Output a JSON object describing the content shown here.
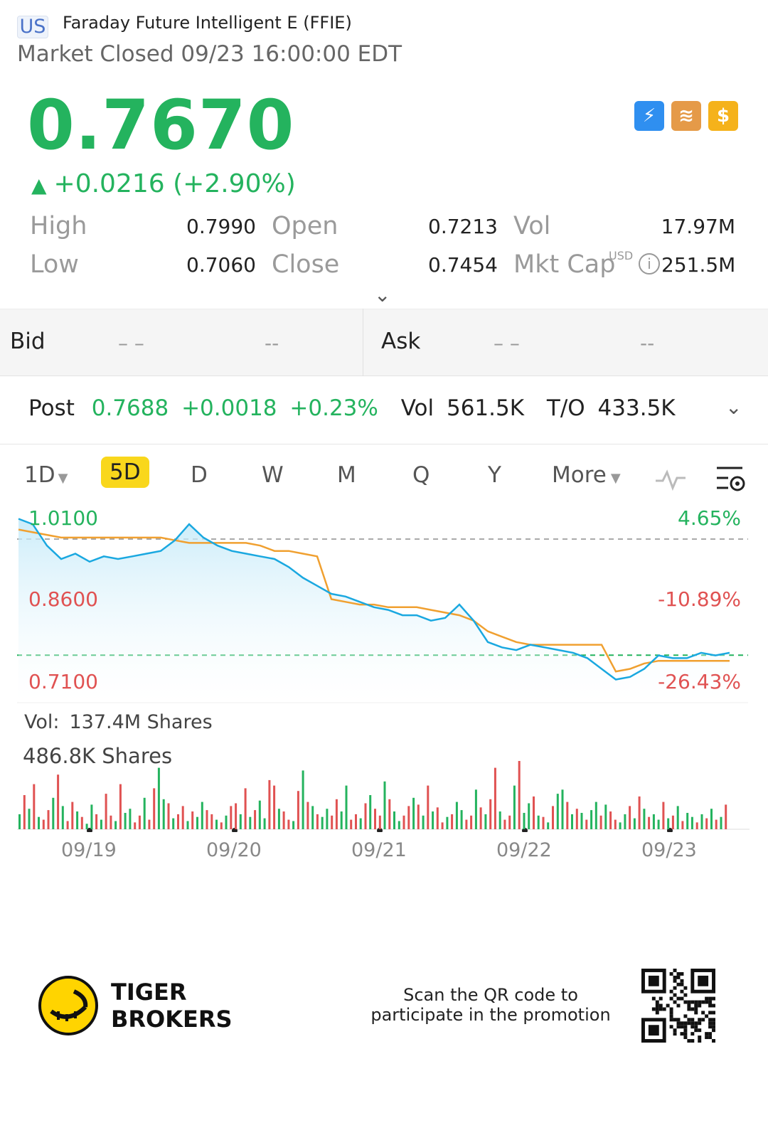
{
  "header": {
    "region": "US",
    "stock_name": "Faraday Future Intelligent E (FFIE)",
    "market_status": "Market Closed 09/23 16:00:00 EDT"
  },
  "quote": {
    "price": "0.7670",
    "change": "+0.0216 (+2.90%)",
    "change_icon": "triangle-up-icon",
    "badges": [
      "lightning-level-1-icon",
      "stack-a-icon",
      "dollar-icon"
    ]
  },
  "stats": {
    "high_label": "High",
    "high_value": "0.7990",
    "low_label": "Low",
    "low_value": "0.7060",
    "open_label": "Open",
    "open_value": "0.7213",
    "close_label": "Close",
    "close_value": "0.7454",
    "vol_label": "Vol",
    "vol_value": "17.97M",
    "mktcap_label": "Mkt Cap",
    "mktcap_unit": "USD",
    "mktcap_value": "251.5M"
  },
  "bidask": {
    "bid_label": "Bid",
    "bid_price": "– –",
    "bid_size": "--",
    "ask_label": "Ask",
    "ask_price": "– –",
    "ask_size": "--"
  },
  "post": {
    "label": "Post",
    "price": "0.7688",
    "change": "+0.0018",
    "pct": "+0.23%",
    "vol_label": "Vol",
    "vol_value": "561.5K",
    "to_label": "T/O",
    "to_value": "433.5K"
  },
  "tabs": [
    {
      "label": "1D",
      "dropdown": true
    },
    {
      "label": "5D",
      "active": true
    },
    {
      "label": "D"
    },
    {
      "label": "W"
    },
    {
      "label": "M"
    },
    {
      "label": "Q"
    },
    {
      "label": "Y"
    },
    {
      "label": "More",
      "dropdown": true
    }
  ],
  "colors": {
    "up": "#24b35e",
    "down": "#e05252",
    "price_line": "#1aa8e0",
    "avg_line": "#f0a030",
    "active_tab": "#f9d71c"
  },
  "chart_data": {
    "type": "line",
    "y_labels_left": [
      "1.0100",
      "0.8600",
      "0.7100"
    ],
    "y_labels_right": [
      "4.65%",
      "-10.89%",
      "-26.43%"
    ],
    "ylim": [
      0.71,
      1.01
    ],
    "prev_close": 0.7454,
    "x_labels": [
      "09/19",
      "09/20",
      "09/21",
      "09/22",
      "09/23"
    ],
    "series": [
      {
        "values": [
          1.0,
          0.99,
          0.95,
          0.925,
          0.935,
          0.92,
          0.93,
          0.925,
          0.93,
          0.935,
          0.94,
          0.96,
          0.99,
          0.965,
          0.95,
          0.94,
          0.935,
          0.93,
          0.925,
          0.91,
          0.89,
          0.875,
          0.86,
          0.855,
          0.845,
          0.835,
          0.83,
          0.82,
          0.82,
          0.81,
          0.815,
          0.84,
          0.81,
          0.77,
          0.76,
          0.755,
          0.765,
          0.76,
          0.755,
          0.75,
          0.74,
          0.72,
          0.7,
          0.705,
          0.72,
          0.745,
          0.74,
          0.74,
          0.75,
          0.745,
          0.75
        ]
      },
      {
        "values": [
          0.98,
          0.975,
          0.97,
          0.965,
          0.965,
          0.965,
          0.965,
          0.965,
          0.965,
          0.965,
          0.965,
          0.96,
          0.955,
          0.955,
          0.955,
          0.955,
          0.955,
          0.95,
          0.94,
          0.94,
          0.935,
          0.93,
          0.85,
          0.845,
          0.84,
          0.84,
          0.835,
          0.835,
          0.835,
          0.83,
          0.825,
          0.82,
          0.81,
          0.79,
          0.78,
          0.77,
          0.765,
          0.765,
          0.765,
          0.765,
          0.765,
          0.765,
          0.715,
          0.72,
          0.73,
          0.735,
          0.735,
          0.735,
          0.735,
          0.735,
          0.735
        ]
      }
    ]
  },
  "volume": {
    "label": "Vol:",
    "total": "137.4M Shares",
    "max": "486.8K Shares",
    "bars": [
      22,
      50,
      30,
      66,
      18,
      14,
      28,
      46,
      80,
      34,
      12,
      40,
      26,
      18,
      8,
      36,
      22,
      14,
      52,
      20,
      12,
      66,
      24,
      30,
      10,
      20,
      46,
      14,
      60,
      90,
      44,
      38,
      16,
      22,
      34,
      12,
      26,
      18,
      40,
      28,
      22,
      14,
      10,
      20,
      34,
      38,
      22,
      60,
      18,
      28,
      42,
      16,
      72,
      64,
      30,
      26,
      14,
      12,
      56,
      86,
      40,
      34,
      22,
      18,
      30,
      20,
      44,
      26,
      64,
      14,
      22,
      16,
      38,
      50,
      30,
      20,
      70,
      44,
      26,
      12,
      20,
      34,
      46,
      36,
      20,
      64,
      26,
      32,
      10,
      18,
      22,
      40,
      28,
      14,
      20,
      58,
      32,
      22,
      44,
      90,
      26,
      14,
      20,
      64,
      100,
      24,
      38,
      48,
      20,
      18,
      10,
      34,
      52,
      58,
      40,
      22,
      30,
      24,
      14,
      28,
      40,
      20,
      36,
      26,
      14,
      10,
      22,
      34,
      16,
      48,
      30,
      18,
      22,
      14,
      40,
      16,
      20,
      34,
      12,
      24,
      18,
      10,
      22,
      16,
      30,
      14,
      18,
      36
    ],
    "bar_colors": [
      "g",
      "r",
      "g",
      "r",
      "g",
      "r",
      "r",
      "g",
      "r",
      "g",
      "r",
      "r",
      "g",
      "r",
      "g",
      "g",
      "r",
      "g",
      "r",
      "r",
      "g",
      "r",
      "g",
      "g",
      "r",
      "r",
      "g",
      "r",
      "r",
      "g",
      "g",
      "r",
      "g",
      "r",
      "r",
      "g",
      "r",
      "g",
      "g",
      "r",
      "r",
      "g",
      "r",
      "g",
      "r",
      "r",
      "g",
      "r",
      "g",
      "r",
      "g",
      "g",
      "r",
      "r",
      "g",
      "r",
      "r",
      "g",
      "r",
      "g",
      "r",
      "g",
      "r",
      "g",
      "g",
      "r",
      "r",
      "g",
      "g",
      "r",
      "r",
      "g",
      "r",
      "g",
      "r",
      "r",
      "g",
      "r",
      "g",
      "g",
      "r",
      "r",
      "g",
      "r",
      "g",
      "r",
      "g",
      "r",
      "r",
      "g",
      "r",
      "g",
      "g",
      "r",
      "r",
      "g",
      "r",
      "g",
      "r",
      "r",
      "g",
      "r",
      "r",
      "g",
      "r",
      "g",
      "g",
      "r",
      "g",
      "r",
      "g",
      "r",
      "g",
      "g",
      "r",
      "g",
      "r",
      "g",
      "r",
      "g",
      "g",
      "r",
      "g",
      "r",
      "r",
      "g",
      "g",
      "r",
      "g",
      "r",
      "g",
      "r",
      "g",
      "g",
      "r",
      "g",
      "r",
      "g",
      "r",
      "g",
      "g",
      "r",
      "g",
      "r",
      "g",
      "r",
      "g",
      "r"
    ]
  },
  "footer": {
    "brand_line1": "TIGER",
    "brand_line2": "BROKERS",
    "promo": "Scan the QR code to participate in the promotion"
  }
}
